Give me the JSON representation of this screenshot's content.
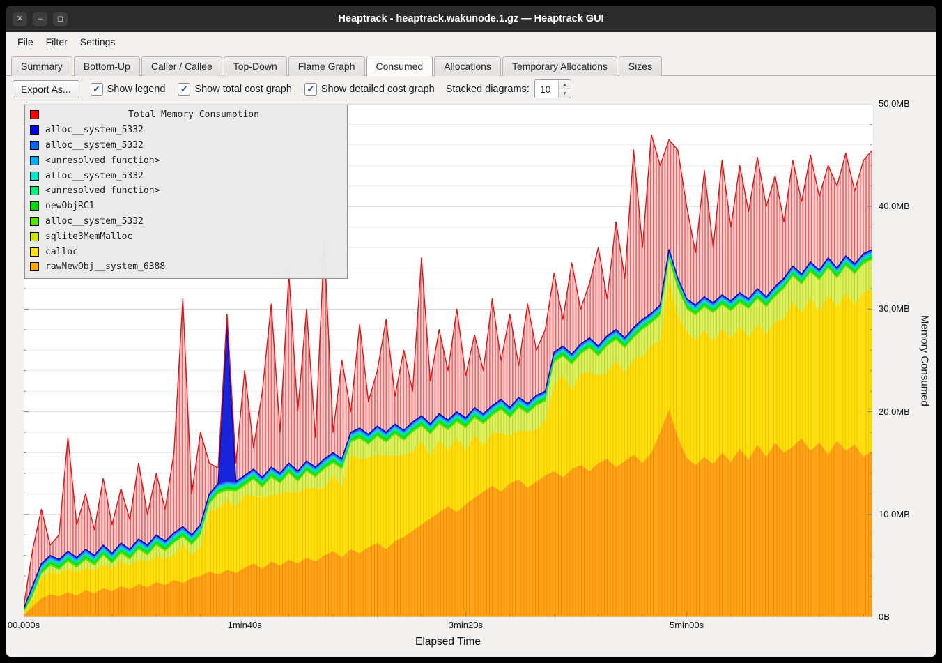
{
  "titlebar": {
    "title": "Heaptrack - heaptrack.wakunode.1.gz — Heaptrack GUI",
    "controls": [
      {
        "name": "close",
        "glyph": "✕"
      },
      {
        "name": "minimize",
        "glyph": "–"
      },
      {
        "name": "maximize",
        "glyph": "◻"
      }
    ]
  },
  "menubar": {
    "items": [
      {
        "label": "File",
        "underline": 0
      },
      {
        "label": "Filter",
        "underline": 1
      },
      {
        "label": "Settings",
        "underline": 0
      }
    ]
  },
  "tabs": [
    {
      "label": "Summary",
      "active": false
    },
    {
      "label": "Bottom-Up",
      "active": false
    },
    {
      "label": "Caller / Callee",
      "active": false
    },
    {
      "label": "Top-Down",
      "active": false
    },
    {
      "label": "Flame Graph",
      "active": false
    },
    {
      "label": "Consumed",
      "active": true
    },
    {
      "label": "Allocations",
      "active": false
    },
    {
      "label": "Temporary Allocations",
      "active": false
    },
    {
      "label": "Sizes",
      "active": false
    }
  ],
  "toolbar": {
    "export_label": "Export As...",
    "checkboxes": [
      {
        "label": "Show legend",
        "checked": true
      },
      {
        "label": "Show total cost graph",
        "checked": true
      },
      {
        "label": "Show detailed cost graph",
        "checked": true
      }
    ],
    "stacked_label": "Stacked diagrams:",
    "stacked_value": "10"
  },
  "icons": {
    "check": "✓",
    "spin_up": "▲",
    "spin_down": "▼"
  },
  "legend": {
    "title": "Total Memory Consumption",
    "title_color": "#ff0000",
    "items": [
      {
        "label": "alloc__system_5332",
        "color": "#0000e0"
      },
      {
        "label": "alloc__system_5332",
        "color": "#0066ff"
      },
      {
        "label": "<unresolved function>",
        "color": "#00aaff"
      },
      {
        "label": "alloc__system_5332",
        "color": "#00e8c8"
      },
      {
        "label": "<unresolved function>",
        "color": "#00ee77"
      },
      {
        "label": "newObjRC1",
        "color": "#00dd00"
      },
      {
        "label": "alloc__system_5332",
        "color": "#55e600"
      },
      {
        "label": "sqlite3MemMalloc",
        "color": "#cce800"
      },
      {
        "label": "calloc",
        "color": "#ffe100"
      },
      {
        "label": "rawNewObj__system_6388",
        "color": "#ffa800"
      }
    ]
  },
  "chart_data": {
    "type": "stacked-area",
    "title": "Total Memory Consumption",
    "xlabel": "Elapsed Time",
    "ylabel": "Memory Consumed",
    "xlim": [
      0,
      384
    ],
    "ylim": [
      0,
      50
    ],
    "grid_step_mb": 2,
    "x_ticks": [
      {
        "t": 0,
        "label": "00.000s"
      },
      {
        "t": 100,
        "label": "1min40s"
      },
      {
        "t": 200,
        "label": "3min20s"
      },
      {
        "t": 300,
        "label": "5min00s"
      }
    ],
    "y_ticks": [
      {
        "v": 0,
        "label": "0B"
      },
      {
        "v": 10,
        "label": "10,0MB"
      },
      {
        "v": 20,
        "label": "20,0MB"
      },
      {
        "v": 30,
        "label": "30,0MB"
      },
      {
        "v": 40,
        "label": "40,0MB"
      },
      {
        "v": 50,
        "label": "50,0MB"
      }
    ],
    "x": [
      0,
      4,
      8,
      12,
      16,
      20,
      24,
      28,
      32,
      36,
      40,
      44,
      48,
      52,
      56,
      60,
      64,
      68,
      72,
      76,
      80,
      84,
      88,
      92,
      96,
      100,
      104,
      108,
      112,
      116,
      120,
      124,
      128,
      132,
      136,
      140,
      144,
      148,
      152,
      156,
      160,
      164,
      168,
      172,
      176,
      180,
      184,
      188,
      192,
      196,
      200,
      204,
      208,
      212,
      216,
      220,
      224,
      228,
      232,
      236,
      240,
      244,
      248,
      252,
      256,
      260,
      264,
      268,
      272,
      276,
      280,
      284,
      288,
      292,
      296,
      300,
      304,
      308,
      312,
      316,
      320,
      324,
      328,
      332,
      336,
      340,
      344,
      348,
      352,
      356,
      360,
      364,
      368,
      372,
      376,
      380,
      384
    ],
    "total": {
      "name": "Total Memory Consumption",
      "color": "#e81010",
      "values_mb": [
        1.0,
        6.5,
        10.5,
        7.0,
        8.0,
        17.5,
        9.0,
        12.0,
        8.5,
        13.5,
        9.0,
        12.5,
        9.5,
        15.0,
        10.0,
        14.0,
        10.5,
        16.0,
        31.0,
        12.0,
        18.0,
        15.0,
        14.5,
        29.5,
        15.0,
        24.0,
        16.5,
        22.0,
        30.5,
        18.0,
        33.5,
        20.0,
        30.0,
        17.5,
        36.5,
        18.0,
        25.0,
        20.0,
        28.5,
        21.0,
        24.0,
        29.0,
        21.5,
        26.0,
        22.0,
        35.0,
        23.0,
        28.0,
        24.0,
        30.0,
        23.5,
        27.5,
        24.0,
        31.0,
        25.0,
        29.5,
        24.5,
        30.5,
        26.0,
        28.0,
        33.5,
        29.0,
        34.5,
        30.0,
        32.5,
        36.0,
        31.0,
        38.5,
        33.0,
        45.5,
        36.0,
        47.0,
        44.0,
        46.5,
        45.5,
        40.0,
        35.5,
        43.5,
        36.0,
        44.5,
        38.0,
        44.0,
        39.5,
        44.8,
        40.0,
        43.0,
        38.5,
        44.5,
        40.5,
        45.0,
        41.0,
        44.0,
        42.0,
        45.2,
        41.5,
        44.5,
        45.5
      ]
    },
    "stack_top_mb": [
      0.8,
      3.0,
      5.2,
      6.0,
      5.6,
      6.4,
      5.8,
      6.6,
      6.0,
      7.0,
      6.2,
      7.2,
      6.6,
      7.6,
      7.0,
      8.0,
      7.4,
      8.2,
      8.8,
      8.0,
      9.0,
      12.0,
      13.0,
      28.5,
      13.2,
      13.8,
      14.4,
      13.6,
      14.6,
      14.0,
      15.0,
      14.2,
      15.2,
      14.6,
      15.4,
      16.0,
      15.4,
      18.0,
      18.4,
      17.8,
      18.6,
      18.0,
      18.8,
      18.2,
      19.0,
      19.6,
      18.8,
      19.8,
      19.2,
      20.0,
      19.4,
      20.4,
      19.8,
      20.6,
      21.2,
      20.4,
      21.4,
      20.8,
      21.6,
      22.0,
      25.8,
      26.4,
      25.6,
      26.6,
      27.2,
      26.4,
      27.4,
      28.0,
      27.2,
      28.2,
      29.0,
      29.6,
      30.4,
      35.8,
      33.0,
      31.0,
      30.4,
      31.2,
      30.6,
      31.4,
      30.8,
      31.6,
      31.0,
      32.0,
      31.2,
      32.2,
      33.0,
      34.2,
      33.4,
      34.6,
      33.8,
      35.0,
      34.0,
      35.2,
      34.4,
      35.4,
      35.8
    ],
    "yellow_top_mb": [
      0.3,
      1.7,
      3.8,
      4.4,
      4.2,
      4.7,
      4.4,
      4.8,
      4.5,
      5.1,
      4.7,
      5.4,
      5.0,
      5.6,
      5.4,
      5.9,
      5.7,
      6.0,
      7.1,
      6.0,
      6.8,
      10.2,
      10.6,
      11.4,
      10.7,
      11.9,
      11.8,
      11.6,
      11.9,
      12.0,
      12.2,
      12.1,
      12.6,
      12.5,
      12.5,
      13.8,
      12.7,
      15.8,
      15.4,
      15.5,
      15.8,
      15.7,
      15.7,
      15.8,
      16.1,
      17.2,
      15.6,
      17.3,
      16.2,
      17.5,
      16.2,
      17.8,
      16.7,
      18.0,
      17.9,
      17.7,
      18.2,
      18.1,
      18.2,
      19.2,
      22.6,
      23.6,
      22.1,
      23.7,
      23.9,
      23.5,
      23.8,
      25.0,
      23.8,
      25.2,
      25.4,
      26.5,
      26.9,
      32.7,
      29.3,
      27.8,
      26.9,
      28.0,
      26.8,
      28.1,
      27.2,
      28.3,
      27.2,
      28.6,
      27.5,
      28.8,
      29.1,
      30.7,
      29.6,
      31.1,
      29.8,
      31.4,
      30.2,
      31.6,
      30.4,
      31.7,
      31.9
    ],
    "orange_top_mb": [
      0.2,
      1.0,
      1.8,
      2.2,
      2.0,
      2.4,
      2.1,
      2.6,
      2.3,
      2.8,
      2.5,
      3.0,
      2.7,
      3.2,
      2.9,
      3.4,
      3.1,
      3.6,
      3.3,
      3.8,
      4.0,
      4.4,
      4.1,
      4.6,
      4.3,
      4.8,
      5.2,
      4.7,
      5.4,
      5.0,
      5.6,
      5.2,
      5.8,
      5.4,
      6.0,
      6.4,
      5.8,
      6.6,
      6.2,
      6.8,
      7.2,
      6.6,
      7.4,
      7.8,
      8.4,
      9.0,
      9.6,
      10.2,
      10.8,
      10.2,
      11.0,
      11.6,
      12.2,
      12.8,
      12.2,
      13.0,
      13.4,
      12.6,
      13.2,
      13.8,
      14.2,
      13.6,
      14.4,
      14.8,
      14.2,
      15.0,
      15.4,
      14.6,
      15.2,
      15.8,
      15.0,
      16.0,
      18.0,
      20.2,
      17.5,
      15.5,
      14.8,
      15.6,
      14.9,
      16.0,
      15.1,
      16.4,
      15.3,
      16.8,
      15.6,
      17.0,
      16.0,
      16.6,
      17.4,
      16.2,
      17.0,
      15.8,
      17.2,
      16.2,
      16.8,
      15.6,
      16.2
    ],
    "sqlite_thickness_mb": [
      0.1,
      0.3,
      0.4,
      0.6,
      0.4,
      0.7,
      0.4,
      0.8,
      0.5,
      0.9,
      0.5,
      0.8,
      0.6,
      1.0,
      0.6,
      1.1,
      0.7,
      1.2,
      0.7,
      1.0,
      1.2,
      0.8,
      1.4,
      0.9,
      1.5,
      0.9,
      1.6,
      1.0,
      1.7,
      1.0,
      1.8,
      1.1,
      1.6,
      1.1,
      1.9,
      1.2,
      1.7,
      1.2,
      2.0,
      1.3,
      1.8,
      1.3,
      2.1,
      1.4,
      1.9,
      1.4,
      2.2,
      1.5,
      2.0,
      1.5,
      2.2,
      1.6,
      2.1,
      1.6,
      2.3,
      1.7,
      2.2,
      1.7,
      2.4,
      1.8,
      2.2,
      1.8,
      2.5,
      1.9,
      2.3,
      1.9,
      2.6,
      2.0,
      2.4,
      2.0,
      2.6,
      2.1,
      2.5,
      2.1,
      2.7,
      2.2,
      2.5,
      2.2,
      2.8,
      2.3,
      2.6,
      2.3,
      2.8,
      2.4,
      2.7,
      2.4,
      2.9,
      2.5,
      2.8,
      2.5,
      3.0,
      2.6,
      2.8,
      2.6,
      3.0,
      2.7,
      2.9
    ],
    "thin_layers_above_sqlite": [
      {
        "name": "alloc__system_5332",
        "cum_offset_mb": 0.2
      },
      {
        "name": "newObjRC1",
        "cum_offset_mb": 0.35
      },
      {
        "name": "<unresolved function>",
        "cum_offset_mb": 0.53
      },
      {
        "name": "alloc__system_5332",
        "cum_offset_mb": 0.65
      },
      {
        "name": "<unresolved function>",
        "cum_offset_mb": 0.77
      },
      {
        "name": "alloc__system_5332",
        "cum_offset_mb": 0.91
      }
    ],
    "palette": {
      "red_base": "#f6d2d2",
      "red_stripe": "#ef6060",
      "red_line": "#e81010",
      "navy_fill": "#1824da",
      "navy_line": "#000ac8",
      "blue_fill": "#2d6bff",
      "ltblue_fill": "#35aaff",
      "cyan_fill": "#00e2c8",
      "spring_fill": "#00e878",
      "green_fill": "#0fd818",
      "brightgreen_fill": "#55e300",
      "sqlite_base": "#dcee6a",
      "sqlite_stripe": "#bedc20",
      "yellow_base": "#ffe00d",
      "yellow_stripe": "#f2c300",
      "orange_base": "#ffa41a",
      "orange_stripe": "#ef8d00",
      "grid_minor": "#ebebeb",
      "grid_major": "#d8d8d8",
      "frame": "#c4c4c4",
      "tick": "#808080"
    }
  }
}
